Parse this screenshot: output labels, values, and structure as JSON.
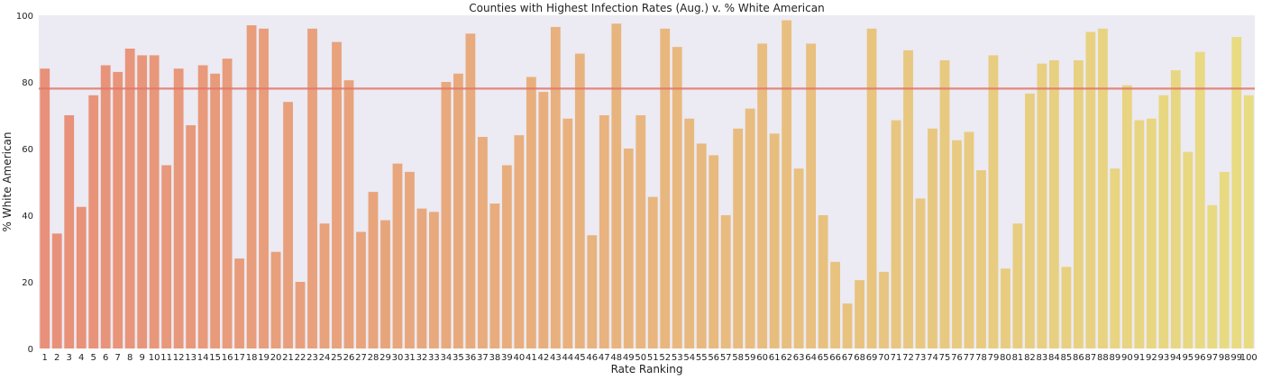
{
  "chart_data": {
    "type": "bar",
    "title": "Counties with Highest Infection Rates (Aug.) v. % White American",
    "xlabel": "Rate Ranking",
    "ylabel": "% White American",
    "ylim": [
      0,
      100
    ],
    "yticks": [
      0,
      20,
      40,
      60,
      80,
      100
    ],
    "grid": false,
    "reference_line": 78,
    "colors": {
      "start": "#E8907A",
      "end": "#E8DC82",
      "line": "#E2776A",
      "background": "#ECEAF2"
    },
    "categories": [
      "1",
      "2",
      "3",
      "4",
      "5",
      "6",
      "7",
      "8",
      "9",
      "10",
      "11",
      "12",
      "13",
      "14",
      "15",
      "16",
      "17",
      "18",
      "19",
      "20",
      "21",
      "22",
      "23",
      "24",
      "25",
      "26",
      "27",
      "28",
      "29",
      "30",
      "31",
      "32",
      "33",
      "34",
      "35",
      "36",
      "37",
      "38",
      "39",
      "40",
      "41",
      "42",
      "43",
      "44",
      "45",
      "46",
      "47",
      "48",
      "49",
      "50",
      "51",
      "52",
      "53",
      "54",
      "55",
      "56",
      "57",
      "58",
      "59",
      "60",
      "61",
      "62",
      "63",
      "64",
      "65",
      "66",
      "67",
      "68",
      "69",
      "70",
      "71",
      "72",
      "73",
      "74",
      "75",
      "76",
      "77",
      "78",
      "79",
      "80",
      "81",
      "82",
      "83",
      "84",
      "85",
      "86",
      "87",
      "88",
      "89",
      "90",
      "91",
      "92",
      "93",
      "94",
      "95",
      "96",
      "97",
      "98",
      "99",
      "100"
    ],
    "values": [
      84,
      34.5,
      70,
      42.5,
      76,
      85,
      83,
      90,
      88,
      88,
      55,
      84,
      67,
      85,
      82.5,
      87,
      27,
      97,
      96,
      29,
      74,
      20,
      96,
      37.5,
      92,
      80.5,
      35,
      47,
      38.5,
      55.5,
      53,
      42,
      41,
      80,
      82.5,
      94.5,
      63.5,
      43.5,
      55,
      64,
      81.5,
      77,
      96.5,
      69,
      88.5,
      34,
      70,
      97.5,
      60,
      70,
      45.5,
      96,
      90.5,
      69,
      61.5,
      58,
      40,
      66,
      72,
      91.5,
      64.5,
      98.5,
      54,
      91.5,
      40,
      26,
      13.5,
      20.5,
      96,
      23,
      68.5,
      89.5,
      45,
      66,
      86.5,
      62.5,
      65,
      53.5,
      88,
      24,
      37.5,
      76.5,
      85.5,
      86.5,
      24.5,
      86.5,
      95,
      96,
      54,
      79,
      68.5,
      69,
      76,
      83.5,
      59,
      89,
      43,
      53,
      93.5,
      76
    ]
  }
}
